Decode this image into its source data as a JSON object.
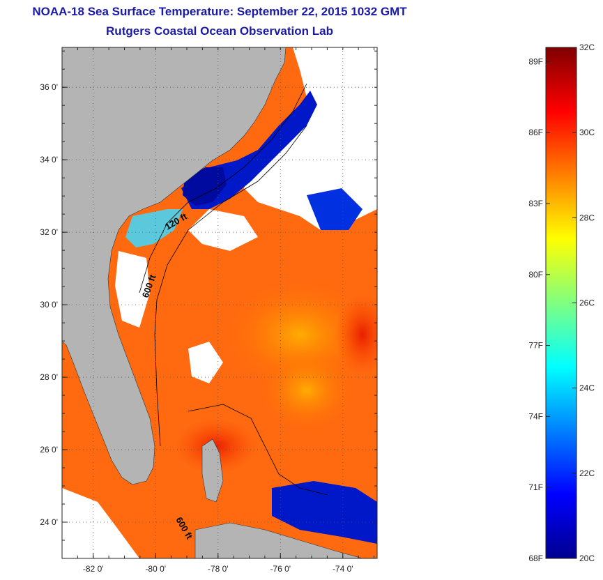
{
  "header": {
    "title": "NOAA-18 Sea Surface Temperature:  September 22, 2015 1032 GMT",
    "subtitle": "Rutgers Coastal Ocean Observation Lab"
  },
  "map": {
    "lon_range": [
      -83.0,
      -72.9
    ],
    "lat_range": [
      23.0,
      37.1
    ],
    "lat_ticks": [
      {
        "value": 24,
        "label": "24 0'"
      },
      {
        "value": 26,
        "label": "26 0'"
      },
      {
        "value": 28,
        "label": "28 0'"
      },
      {
        "value": 30,
        "label": "30 0'"
      },
      {
        "value": 32,
        "label": "32 0'"
      },
      {
        "value": 34,
        "label": "34 0'"
      },
      {
        "value": 36,
        "label": "36 0'"
      }
    ],
    "lon_ticks": [
      {
        "value": -82,
        "label": "-82 0'"
      },
      {
        "value": -80,
        "label": "-80 0'"
      },
      {
        "value": -78,
        "label": "-78 0'"
      },
      {
        "value": -76,
        "label": "-76 0'"
      },
      {
        "value": -74,
        "label": "-74 0'"
      }
    ],
    "contour_labels": [
      {
        "text": "120 ft"
      },
      {
        "text": "600 ft"
      },
      {
        "text": "600 ft"
      }
    ],
    "colors": {
      "land": "#b4b4b4",
      "cloud": "#ffffff",
      "grid": "#555555"
    }
  },
  "colorbar": {
    "min_c": 20,
    "max_c": 32,
    "celsius_labels": [
      {
        "value": 32,
        "label": "32C"
      },
      {
        "value": 30,
        "label": "30C"
      },
      {
        "value": 28,
        "label": "28C"
      },
      {
        "value": 26,
        "label": "26C"
      },
      {
        "value": 24,
        "label": "24C"
      },
      {
        "value": 22,
        "label": "22C"
      },
      {
        "value": 20,
        "label": "20C"
      }
    ],
    "fahrenheit_labels": [
      {
        "value": 89,
        "label": "89F"
      },
      {
        "value": 86,
        "label": "86F"
      },
      {
        "value": 83,
        "label": "83F"
      },
      {
        "value": 80,
        "label": "80F"
      },
      {
        "value": 77,
        "label": "77F"
      },
      {
        "value": 74,
        "label": "74F"
      },
      {
        "value": 71,
        "label": "71F"
      },
      {
        "value": 68,
        "label": "68F"
      }
    ],
    "stops": [
      "#00008f",
      "#0000ff",
      "#0080ff",
      "#00ffff",
      "#80ff80",
      "#ffff00",
      "#ff8000",
      "#ff0000",
      "#800000"
    ]
  }
}
